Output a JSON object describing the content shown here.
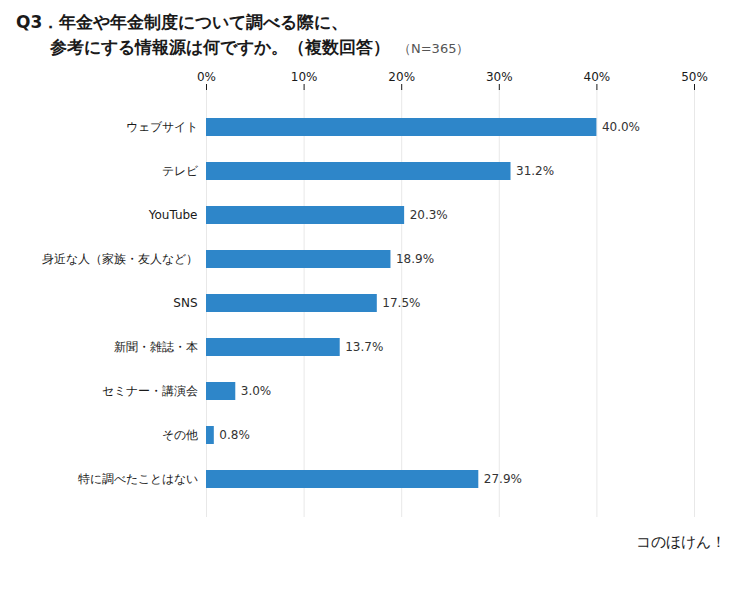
{
  "chart_data": {
    "type": "bar",
    "orientation": "horizontal",
    "title": "Q3．年金や年金制度について調べる際に、",
    "subtitle": "　　参考にする情報源は何ですか。（複数回答）",
    "annotations": [
      "（N=365）",
      "コのほけん！"
    ],
    "categories": [
      "ウェブサイト",
      "テレビ",
      "YouTube",
      "身近な人（家族・友人など）",
      "SNS",
      "新聞・雑誌・本",
      "セミナー・講演会",
      "その他",
      "特に調べたことはない"
    ],
    "values": [
      40.0,
      31.2,
      20.3,
      18.9,
      17.5,
      13.7,
      3.0,
      0.8,
      27.9
    ],
    "value_labels": [
      "40.0%",
      "31.2%",
      "20.3%",
      "18.9%",
      "17.5%",
      "13.7%",
      "3.0%",
      "0.8%",
      "27.9%"
    ],
    "data_labels": true,
    "color": "#2E86C9",
    "xlim": [
      0,
      50
    ],
    "xticks": [
      {
        "value": 0,
        "label": "0%"
      },
      {
        "value": 10,
        "label": "10%"
      },
      {
        "value": 20,
        "label": "20%"
      },
      {
        "value": 30,
        "label": "30%"
      },
      {
        "value": 40,
        "label": "40%"
      },
      {
        "value": 50,
        "label": "50%"
      }
    ],
    "grid": true
  }
}
